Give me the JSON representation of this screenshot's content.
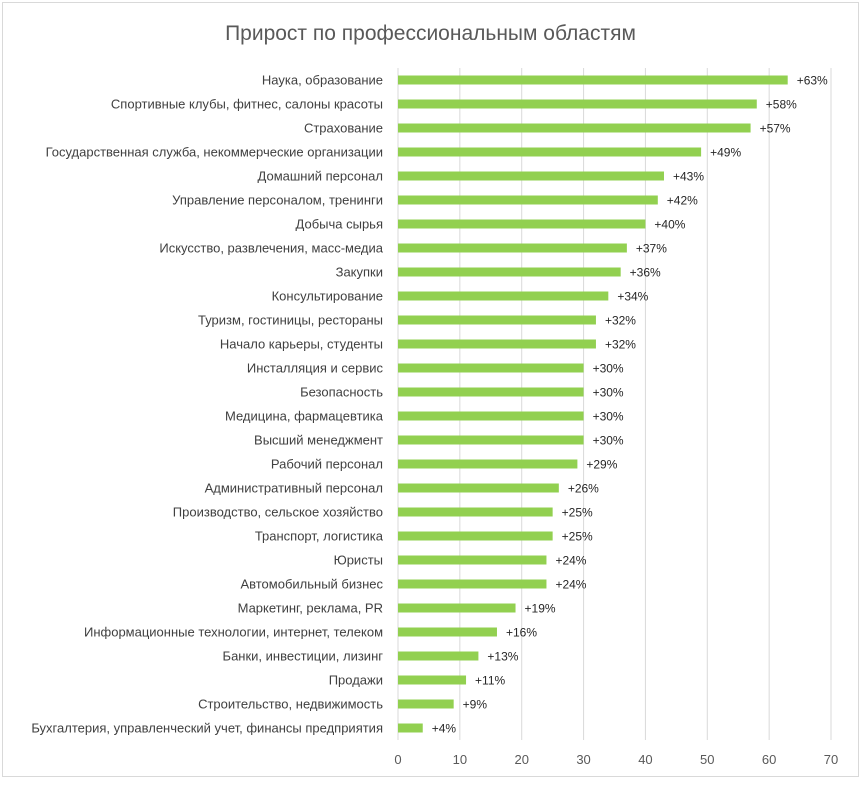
{
  "chart_data": {
    "type": "bar",
    "orientation": "horizontal",
    "title": "Прирост по профессиональным областям",
    "categories": [
      "Наука, образование",
      "Спортивные клубы, фитнес, салоны красоты",
      "Страхование",
      "Государственная служба, некоммерческие организации",
      "Домашний персонал",
      "Управление персоналом, тренинги",
      "Добыча сырья",
      "Искусство, развлечения, масс-медиа",
      "Закупки",
      "Консультирование",
      "Туризм, гостиницы, рестораны",
      "Начало карьеры, студенты",
      "Инсталляция и сервис",
      "Безопасность",
      "Медицина, фармацевтика",
      "Высший менеджмент",
      "Рабочий персонал",
      "Административный персонал",
      "Производство, сельское хозяйство",
      "Транспорт, логистика",
      "Юристы",
      "Автомобильный бизнес",
      "Маркетинг, реклама, PR",
      "Информационные технологии, интернет, телеком",
      "Банки, инвестиции, лизинг",
      "Продажи",
      "Строительство, недвижимость",
      "Бухгалтерия, управленческий учет, финансы предприятия"
    ],
    "values": [
      63,
      58,
      57,
      49,
      43,
      42,
      40,
      37,
      36,
      34,
      32,
      32,
      30,
      30,
      30,
      30,
      29,
      26,
      25,
      25,
      24,
      24,
      19,
      16,
      13,
      11,
      9,
      4
    ],
    "data_labels": [
      "+63%",
      "+58%",
      "+57%",
      "+49%",
      "+43%",
      "+42%",
      "+40%",
      "+37%",
      "+36%",
      "+34%",
      "+32%",
      "+32%",
      "+30%",
      "+30%",
      "+30%",
      "+30%",
      "+29%",
      "+26%",
      "+25%",
      "+25%",
      "+24%",
      "+24%",
      "+19%",
      "+16%",
      "+13%",
      "+11%",
      "+9%",
      "+4%"
    ],
    "xlim": [
      0,
      70
    ],
    "x_ticks": [
      "0",
      "10",
      "20",
      "30",
      "40",
      "50",
      "60",
      "70"
    ],
    "grid": true,
    "legend": "none",
    "bar_color": "#92d050"
  }
}
